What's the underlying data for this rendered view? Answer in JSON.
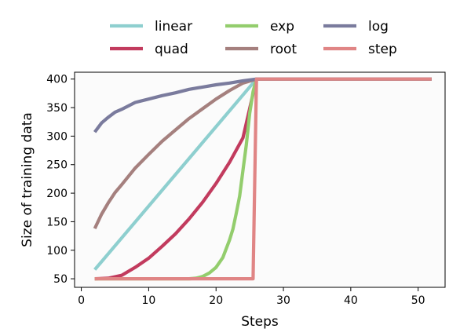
{
  "chart_data": {
    "type": "line",
    "xlabel": "Steps",
    "ylabel": "Size of training data",
    "xlim": [
      -1,
      54
    ],
    "ylim": [
      35,
      412
    ],
    "xticks": [
      0,
      10,
      20,
      30,
      40,
      50
    ],
    "yticks": [
      50,
      100,
      150,
      200,
      250,
      300,
      350,
      400
    ],
    "legend": {
      "placement": "top",
      "columns": 3
    },
    "background": "#fbfbfb",
    "series": [
      {
        "name": "linear",
        "color": "#8ecfcf",
        "x": [
          2,
          26,
          52
        ],
        "y": [
          66,
          400,
          400
        ]
      },
      {
        "name": "quad",
        "color": "#c23b5e",
        "x": [
          2,
          4,
          6,
          8,
          10,
          12,
          14,
          16,
          18,
          20,
          22,
          24,
          26,
          52
        ],
        "y": [
          50,
          51,
          56,
          70,
          86,
          107,
          129,
          155,
          184,
          217,
          254,
          297,
          400,
          400
        ]
      },
      {
        "name": "exp",
        "color": "#93cd6d",
        "x": [
          2,
          16,
          17,
          18,
          19,
          20,
          21,
          22,
          22.5,
          23,
          23.5,
          24,
          24.5,
          25,
          25.5,
          26,
          52
        ],
        "y": [
          50,
          50,
          51,
          54,
          60,
          70,
          87,
          118,
          137,
          165,
          195,
          240,
          285,
          340,
          378,
          400,
          400
        ]
      },
      {
        "name": "root",
        "color": "#a5807e",
        "x": [
          2,
          3,
          4,
          5,
          6,
          8,
          10,
          12,
          14,
          16,
          18,
          20,
          22,
          24,
          26,
          52
        ],
        "y": [
          138,
          163,
          183,
          201,
          215,
          244,
          268,
          291,
          311,
          331,
          348,
          365,
          380,
          393,
          400,
          400
        ]
      },
      {
        "name": "log",
        "color": "#7a7b9d",
        "x": [
          2,
          3,
          4,
          5,
          6,
          8,
          10,
          12,
          14,
          16,
          18,
          20,
          22,
          24,
          26,
          52
        ],
        "y": [
          307,
          323,
          333,
          342,
          347,
          359,
          365,
          371,
          376,
          382,
          386,
          390,
          393,
          397,
          400,
          400
        ]
      },
      {
        "name": "step",
        "color": "#e08585",
        "x": [
          2,
          25.5,
          26,
          52
        ],
        "y": [
          50,
          50,
          400,
          400
        ]
      }
    ]
  }
}
